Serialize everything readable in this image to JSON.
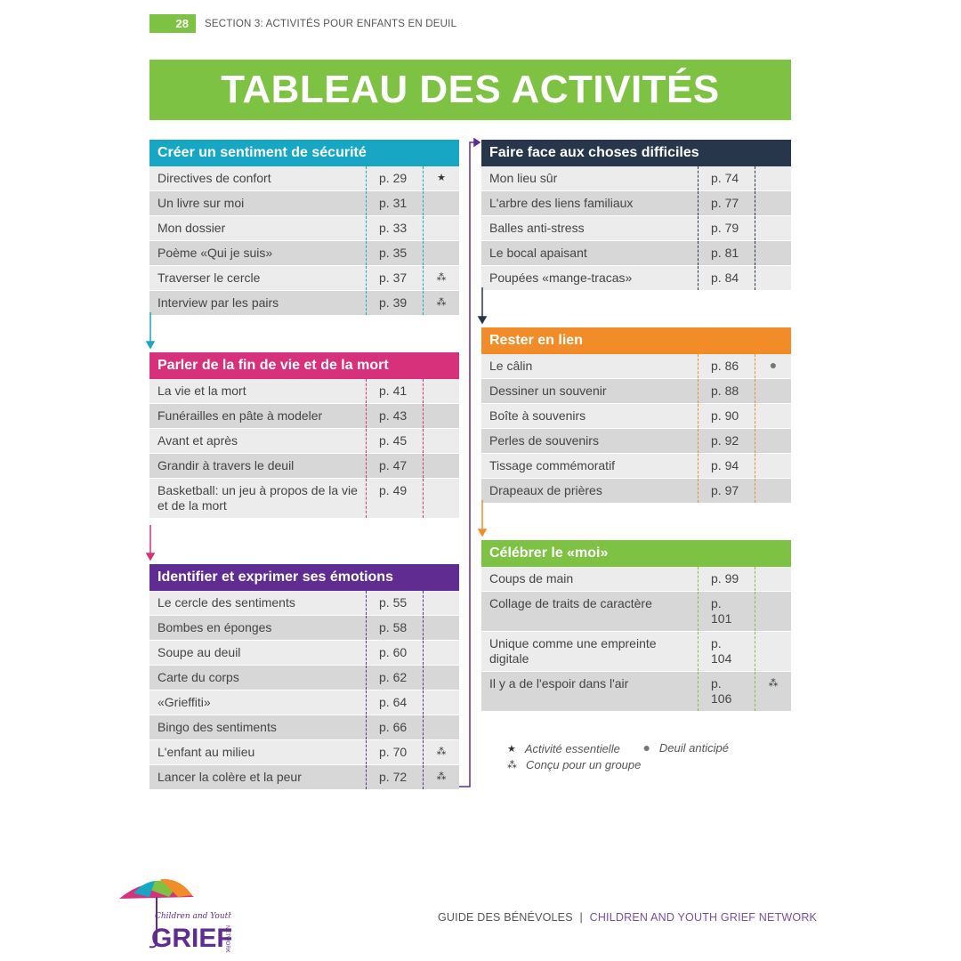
{
  "header": {
    "page_number": "28",
    "section": "SECTION 3: ACTIVITÉS POUR ENFANTS EN DEUIL"
  },
  "title": "TABLEAU DES ACTIVITÉS",
  "colors": {
    "green": "#7dc242",
    "teal": "#17a7c4",
    "pink": "#d6317a",
    "purple": "#5f2d91",
    "navy": "#27364b",
    "orange": "#f28c28"
  },
  "groups": [
    {
      "id": "securite",
      "title": "Créer un sentiment de sécurité",
      "color": "#17a7c4",
      "rows": [
        {
          "name": "Directives de confort",
          "page": "p. 29",
          "icon": "star"
        },
        {
          "name": "Un livre sur moi",
          "page": "p. 31",
          "icon": ""
        },
        {
          "name": "Mon dossier",
          "page": "p. 33",
          "icon": ""
        },
        {
          "name": "Poème «Qui je suis»",
          "page": "p. 35",
          "icon": ""
        },
        {
          "name": "Traverser le cercle",
          "page": "p. 37",
          "icon": "group"
        },
        {
          "name": "Interview par les pairs",
          "page": "p. 39",
          "icon": "group"
        }
      ]
    },
    {
      "id": "mort",
      "title": "Parler de la fin de vie et de la mort",
      "color": "#d6317a",
      "rows": [
        {
          "name": "La vie et la mort",
          "page": "p. 41",
          "icon": ""
        },
        {
          "name": "Funérailles en pâte à modeler",
          "page": "p. 43",
          "icon": ""
        },
        {
          "name": "Avant et après",
          "page": "p. 45",
          "icon": ""
        },
        {
          "name": "Grandir à travers le deuil",
          "page": "p. 47",
          "icon": ""
        },
        {
          "name": "Basketball: un jeu à propos de la vie et de la mort",
          "page": "p. 49",
          "icon": ""
        }
      ]
    },
    {
      "id": "emotions",
      "title": "Identifier et exprimer ses émotions",
      "color": "#5f2d91",
      "rows": [
        {
          "name": "Le cercle des sentiments",
          "page": "p. 55",
          "icon": ""
        },
        {
          "name": "Bombes en éponges",
          "page": "p. 58",
          "icon": ""
        },
        {
          "name": "Soupe au deuil",
          "page": "p. 60",
          "icon": ""
        },
        {
          "name": "Carte du corps",
          "page": "p. 62",
          "icon": ""
        },
        {
          "name": "«Grieffiti»",
          "page": "p. 64",
          "icon": ""
        },
        {
          "name": "Bingo des sentiments",
          "page": "p. 66",
          "icon": ""
        },
        {
          "name": "L'enfant au milieu",
          "page": "p. 70",
          "icon": "group"
        },
        {
          "name": "Lancer la colère et la peur",
          "page": "p. 72",
          "icon": "group"
        }
      ]
    },
    {
      "id": "difficiles",
      "title": "Faire face aux choses difficiles",
      "color": "#27364b",
      "rows": [
        {
          "name": "Mon lieu sûr",
          "page": "p. 74",
          "icon": ""
        },
        {
          "name": "L'arbre des liens familiaux",
          "page": "p. 77",
          "icon": ""
        },
        {
          "name": "Balles anti-stress",
          "page": "p. 79",
          "icon": ""
        },
        {
          "name": "Le bocal apaisant",
          "page": "p. 81",
          "icon": ""
        },
        {
          "name": "Poupées «mange-tracas»",
          "page": "p. 84",
          "icon": ""
        }
      ]
    },
    {
      "id": "lien",
      "title": "Rester en lien",
      "color": "#f28c28",
      "rows": [
        {
          "name": "Le câlin",
          "page": "p. 86",
          "icon": "dot"
        },
        {
          "name": "Dessiner un souvenir",
          "page": "p. 88",
          "icon": ""
        },
        {
          "name": "Boîte à souvenirs",
          "page": "p. 90",
          "icon": ""
        },
        {
          "name": "Perles de souvenirs",
          "page": "p. 92",
          "icon": ""
        },
        {
          "name": "Tissage commémoratif",
          "page": "p. 94",
          "icon": ""
        },
        {
          "name": "Drapeaux de prières",
          "page": "p. 97",
          "icon": ""
        }
      ]
    },
    {
      "id": "moi",
      "title": "Célébrer le «moi»",
      "color": "#7dc242",
      "rows": [
        {
          "name": "Coups de main",
          "page": "p. 99",
          "icon": ""
        },
        {
          "name": "Collage de traits de caractère",
          "page": "p. 101",
          "icon": ""
        },
        {
          "name": "Unique comme une empreinte digitale",
          "page": "p. 104",
          "icon": ""
        },
        {
          "name": "Il y a de l'espoir dans l'air",
          "page": "p. 106",
          "icon": "group"
        }
      ]
    }
  ],
  "legend": {
    "star": "Activité essentielle",
    "dot": "Deuil anticipé",
    "group": "Conçu pour un groupe"
  },
  "footer": {
    "guide": "GUIDE DES BÉNÉVOLES",
    "separator": "|",
    "org": "CHILDREN AND YOUTH GRIEF NETWORK"
  },
  "logo": {
    "line1": "Children and Youth",
    "line2": "GRIEF",
    "line3": "NETWORK"
  }
}
